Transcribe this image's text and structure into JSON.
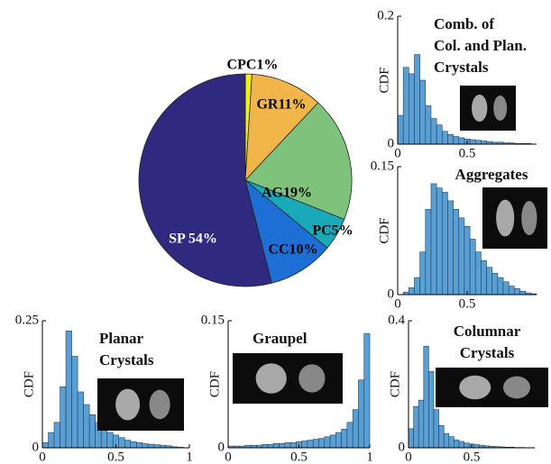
{
  "chart_data": [
    {
      "type": "pie",
      "categories": [
        "CPC",
        "GR",
        "AG",
        "PC",
        "CC",
        "SP"
      ],
      "values": [
        1,
        11,
        19,
        5,
        10,
        54
      ],
      "value_labels": [
        "CPC1%",
        "GR11%",
        "AG19%",
        "PC5%",
        "CC10%",
        "SP 54%"
      ],
      "colors": [
        "#f5f10a",
        "#f2b54a",
        "#7fc27b",
        "#1aa9b8",
        "#1d6fd6",
        "#2f2a80"
      ]
    },
    {
      "type": "histogram",
      "title": [
        "Comb. of",
        "Col. and Plan.",
        "Crystals"
      ],
      "ylabel": "CDF",
      "color": "#5a9fd4",
      "bins": [
        0,
        0.04,
        0.08,
        0.12,
        0.16,
        0.2,
        0.24,
        0.28,
        0.32,
        0.36,
        0.4,
        0.44,
        0.48,
        0.52,
        0.56,
        0.6,
        0.64,
        0.68,
        0.72,
        0.76,
        0.8,
        0.84,
        0.88,
        0.92,
        0.96,
        1
      ],
      "values": [
        0.045,
        0.12,
        0.11,
        0.14,
        0.1,
        0.06,
        0.04,
        0.03,
        0.02,
        0.015,
        0.012,
        0.01,
        0.008,
        0.007,
        0.006,
        0.005,
        0.004,
        0.003,
        0.003,
        0.002,
        0.002,
        0.001,
        0.001,
        0.001,
        0
      ],
      "xlim": [
        0,
        1
      ],
      "xticks": [
        0,
        0.5
      ],
      "ylim": [
        0,
        0.2
      ],
      "yticks": [
        0,
        0.2
      ]
    },
    {
      "type": "histogram",
      "title": [
        "Aggregates"
      ],
      "ylabel": "CDF",
      "color": "#5a9fd4",
      "bins": [
        0,
        0.04,
        0.08,
        0.12,
        0.16,
        0.2,
        0.24,
        0.28,
        0.32,
        0.36,
        0.4,
        0.44,
        0.48,
        0.52,
        0.56,
        0.6,
        0.64,
        0.68,
        0.72,
        0.76,
        0.8,
        0.84,
        0.88,
        0.92,
        0.96,
        1
      ],
      "values": [
        0,
        0.003,
        0.008,
        0.02,
        0.05,
        0.1,
        0.13,
        0.125,
        0.12,
        0.11,
        0.1,
        0.09,
        0.08,
        0.065,
        0.05,
        0.04,
        0.032,
        0.025,
        0.02,
        0.015,
        0.01,
        0.007,
        0.004,
        0.002,
        0.001
      ],
      "xlim": [
        0,
        1
      ],
      "xticks": [
        0,
        0.5
      ],
      "ylim": [
        0,
        0.15
      ],
      "yticks": [
        0,
        0.15
      ]
    },
    {
      "type": "histogram",
      "title": [
        "Planar",
        "Crystals"
      ],
      "ylabel": "CDF",
      "color": "#5a9fd4",
      "bins": [
        0,
        0.04,
        0.08,
        0.12,
        0.16,
        0.2,
        0.24,
        0.28,
        0.32,
        0.36,
        0.4,
        0.44,
        0.48,
        0.52,
        0.56,
        0.6,
        0.64,
        0.68,
        0.72,
        0.76,
        0.8,
        0.84,
        0.88,
        0.92,
        0.96,
        1
      ],
      "values": [
        0.01,
        0.03,
        0.05,
        0.12,
        0.23,
        0.18,
        0.11,
        0.085,
        0.065,
        0.05,
        0.04,
        0.03,
        0.025,
        0.02,
        0.015,
        0.012,
        0.01,
        0.008,
        0.007,
        0.006,
        0.005,
        0.004,
        0.002,
        0.001,
        0
      ],
      "xlim": [
        0,
        1
      ],
      "xticks": [
        0,
        0.5,
        1
      ],
      "ylim": [
        0,
        0.25
      ],
      "yticks": [
        0,
        0.25
      ]
    },
    {
      "type": "histogram",
      "title": [
        "Graupel"
      ],
      "ylabel": "CDF",
      "color": "#5a9fd4",
      "bins": [
        0,
        0.04,
        0.08,
        0.12,
        0.16,
        0.2,
        0.24,
        0.28,
        0.32,
        0.36,
        0.4,
        0.44,
        0.48,
        0.52,
        0.56,
        0.6,
        0.64,
        0.68,
        0.72,
        0.76,
        0.8,
        0.84,
        0.88,
        0.92,
        0.96,
        1
      ],
      "values": [
        0.002,
        0.002,
        0.002,
        0.003,
        0.003,
        0.003,
        0.004,
        0.004,
        0.005,
        0.005,
        0.006,
        0.006,
        0.007,
        0.008,
        0.009,
        0.01,
        0.011,
        0.013,
        0.015,
        0.018,
        0.022,
        0.03,
        0.045,
        0.08,
        0.135
      ],
      "xlim": [
        0,
        1
      ],
      "xticks": [
        0,
        0.5,
        1
      ],
      "ylim": [
        0,
        0.15
      ],
      "yticks": [
        0,
        0.15
      ]
    },
    {
      "type": "histogram",
      "title": [
        "Columnar",
        "Crystals"
      ],
      "ylabel": "CDF",
      "color": "#5a9fd4",
      "bins": [
        0,
        0.04,
        0.08,
        0.12,
        0.16,
        0.2,
        0.24,
        0.28,
        0.32,
        0.36,
        0.4,
        0.44,
        0.48,
        0.52,
        0.56,
        0.6,
        0.64,
        0.68,
        0.72,
        0.76,
        0.8,
        0.84,
        0.88,
        0.92,
        0.96,
        1
      ],
      "values": [
        0.06,
        0.13,
        0.15,
        0.32,
        0.24,
        0.12,
        0.07,
        0.045,
        0.035,
        0.025,
        0.02,
        0.015,
        0.012,
        0.01,
        0.008,
        0.006,
        0.005,
        0.004,
        0.003,
        0.002,
        0.002,
        0.001,
        0.001,
        0,
        0
      ],
      "xlim": [
        0,
        1
      ],
      "xticks": [
        0,
        0.5
      ],
      "ylim": [
        0,
        0.4
      ],
      "yticks": [
        0,
        0.4
      ]
    }
  ]
}
